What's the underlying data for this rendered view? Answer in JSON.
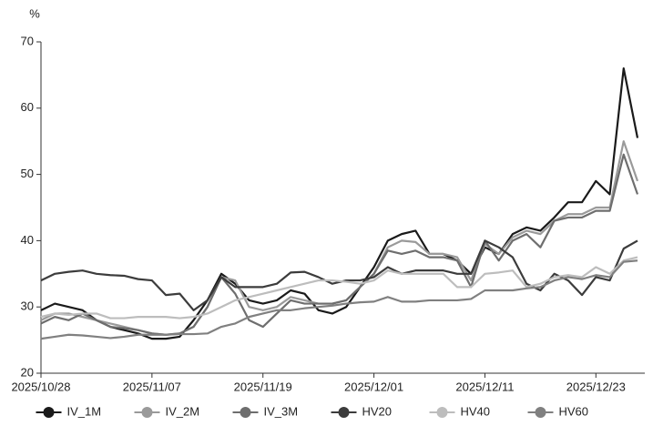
{
  "chart_data": {
    "type": "line",
    "y_label": "%",
    "categories": [
      "2025/10/28",
      null,
      null,
      null,
      null,
      null,
      null,
      null,
      "2025/11/07",
      null,
      null,
      null,
      null,
      null,
      null,
      null,
      "2025/11/19",
      null,
      null,
      null,
      null,
      null,
      null,
      null,
      "2025/12/01",
      null,
      null,
      null,
      null,
      null,
      null,
      null,
      "2025/12/11",
      null,
      null,
      null,
      null,
      null,
      null,
      null,
      "2025/12/23",
      null,
      null,
      null
    ],
    "ylim": [
      20,
      70
    ],
    "yticks": [
      20,
      30,
      40,
      50,
      60,
      70
    ],
    "series": [
      {
        "name": "IV_1M",
        "color": "#1a1a1a",
        "values": [
          29.5,
          30.5,
          30,
          29.5,
          28,
          27,
          26.5,
          26,
          25.2,
          25.2,
          25.5,
          28,
          31,
          35,
          33.5,
          31,
          30.5,
          31,
          32.5,
          32,
          29.5,
          29,
          30,
          33,
          36,
          40,
          41,
          41.5,
          38,
          38,
          37,
          35,
          39,
          38,
          41,
          42,
          41.5,
          43.5,
          45.8,
          45.8,
          49,
          47,
          66,
          55.5
        ]
      },
      {
        "name": "IV_2M",
        "color": "#9a9a9a",
        "values": [
          28,
          29,
          29,
          28.5,
          28,
          27.5,
          27,
          26.5,
          26,
          25.8,
          26,
          27,
          30,
          34.5,
          34,
          30,
          29.5,
          30,
          31.5,
          31,
          30.5,
          30.5,
          31,
          33,
          35,
          39,
          40,
          39.8,
          38,
          38,
          37.5,
          34,
          39.5,
          38,
          40.5,
          41.5,
          41,
          43,
          44,
          44,
          45,
          45,
          55,
          49
        ]
      },
      {
        "name": "IV_3M",
        "color": "#6e6e6e",
        "values": [
          27.5,
          28.5,
          28,
          29,
          28,
          27,
          26.8,
          26.5,
          26,
          25.8,
          26,
          27,
          30,
          34.5,
          32,
          28,
          27,
          29,
          31,
          30.5,
          30.5,
          30.5,
          31,
          33,
          35,
          38.5,
          38,
          38.5,
          37.5,
          37.5,
          37,
          33,
          40,
          37,
          40,
          41,
          39,
          43,
          43.5,
          43.5,
          44.5,
          44.5,
          53,
          47
        ]
      },
      {
        "name": "HV20",
        "color": "#3c3c3c",
        "values": [
          34,
          35,
          35.3,
          35.5,
          35,
          34.8,
          34.7,
          34.2,
          34,
          31.8,
          32,
          29.5,
          31,
          34.5,
          33,
          33,
          33,
          33.5,
          35.2,
          35.3,
          34.5,
          33.5,
          34,
          34,
          34.5,
          36,
          35,
          35.5,
          35.5,
          35.5,
          35,
          35,
          40,
          39,
          37.5,
          33.5,
          32.5,
          35,
          34,
          31.8,
          34.5,
          34,
          38.8,
          40
        ]
      },
      {
        "name": "HV40",
        "color": "#bdbdbd",
        "values": [
          28.5,
          29,
          28.8,
          29,
          29,
          28.3,
          28.3,
          28.5,
          28.5,
          28.5,
          28.3,
          28.5,
          29,
          30,
          31,
          31.5,
          32,
          32.5,
          33,
          33.5,
          34,
          34,
          33.8,
          33.5,
          34,
          35.5,
          35,
          35,
          35,
          35,
          33,
          33,
          35,
          35.2,
          35.5,
          33,
          33.5,
          34.5,
          34.8,
          34.5,
          36,
          35,
          37,
          37.5
        ]
      },
      {
        "name": "HV60",
        "color": "#808080",
        "values": [
          25.2,
          25.5,
          25.8,
          25.7,
          25.5,
          25.3,
          25.5,
          25.8,
          25.8,
          25.8,
          25.9,
          25.9,
          26,
          27,
          27.5,
          28.5,
          29,
          29.5,
          29.5,
          29.8,
          30,
          30.2,
          30.5,
          30.7,
          30.8,
          31.5,
          30.8,
          30.8,
          31,
          31,
          31,
          31.2,
          32.5,
          32.5,
          32.5,
          32.8,
          33,
          34,
          34.5,
          34.2,
          34.8,
          34.5,
          36.8,
          37
        ]
      }
    ]
  }
}
